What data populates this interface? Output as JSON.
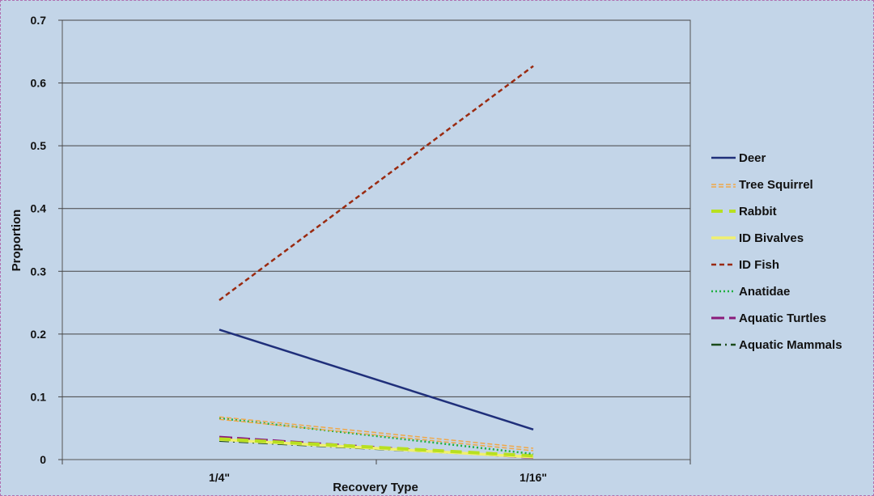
{
  "chart_data": {
    "type": "line",
    "categories": [
      "1/4\"",
      "1/16\""
    ],
    "xlabel": "Recovery Type",
    "ylabel": "Proportion",
    "ylim": [
      0,
      0.7
    ],
    "yticks": [
      "0",
      "0.1",
      "0.2",
      "0.3",
      "0.4",
      "0.5",
      "0.6",
      "0.7"
    ],
    "grid": true,
    "legend_position": "right",
    "series": [
      {
        "name": "Deer",
        "values": [
          0.207,
          0.048
        ],
        "color": "#1f2f7a",
        "style": "solid"
      },
      {
        "name": "Tree Squirrel",
        "values": [
          0.068,
          0.018
        ],
        "color": "#f0a848",
        "style": "double-dash"
      },
      {
        "name": "Rabbit",
        "values": [
          0.033,
          0.006
        ],
        "color": "#b8e020",
        "style": "thick-dash"
      },
      {
        "name": "ID Bivalves",
        "values": [
          0.032,
          0.004
        ],
        "color": "#f0f070",
        "style": "solid-light"
      },
      {
        "name": "ID Fish",
        "values": [
          0.254,
          0.627
        ],
        "color": "#9a2a10",
        "style": "dash"
      },
      {
        "name": "Anatidae",
        "values": [
          0.066,
          0.009
        ],
        "color": "#20b040",
        "style": "dot"
      },
      {
        "name": "Aquatic Turtles",
        "values": [
          0.036,
          0.003
        ],
        "color": "#8a1a7a",
        "style": "long-dash"
      },
      {
        "name": "Aquatic Mammals",
        "values": [
          0.03,
          0.004
        ],
        "color": "#1a4a1a",
        "style": "dash-dot"
      }
    ]
  }
}
